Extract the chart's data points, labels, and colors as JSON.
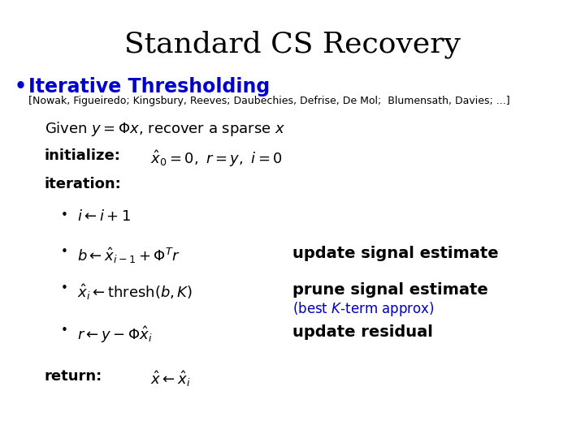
{
  "title": "Standard CS Recovery",
  "title_fontsize": 26,
  "background_color": "#ffffff",
  "bullet_color": "#0000cc",
  "bullet_text": "Iterative Thresholding",
  "bullet_fontsize": 17,
  "ref_text": "[Nowak, Figueiredo; Kingsbury, Reeves; Daubechies, Defrise, De Mol;  Blumensath, Davies; ...]",
  "ref_fontsize": 9,
  "given_text": "Given $y = \\Phi x$, recover a sparse $x$",
  "given_fontsize": 13,
  "init_label": "initialize:",
  "init_math": "$\\hat{x}_0 = 0,\\ r = y,\\ i = 0$",
  "init_fontsize": 13,
  "iter_label": "iteration:",
  "iter_fontsize": 13,
  "sub_bullets": [
    {
      "math": "$i \\leftarrow i + 1$",
      "annotation": "",
      "annotation_color": "#000000",
      "annotation_bold": false
    },
    {
      "math": "$b \\leftarrow \\hat{x}_{i-1} + \\Phi^T r$",
      "annotation": "update signal estimate",
      "annotation_color": "#000000",
      "annotation_bold": true
    },
    {
      "math": "$\\hat{x}_i \\leftarrow \\mathrm{thresh}(b, K)$",
      "annotation": "prune signal estimate",
      "annotation_color": "#000000",
      "annotation_bold": true,
      "sub_annotation": "(best $K$-term approx)",
      "sub_annotation_color": "#0000cc"
    },
    {
      "math": "$r \\leftarrow y - \\Phi\\hat{x}_i$",
      "annotation": "update residual",
      "annotation_color": "#000000",
      "annotation_bold": true
    }
  ],
  "return_label": "return:",
  "return_math": "$\\hat{x} \\leftarrow \\hat{x}_i$",
  "return_fontsize": 13,
  "math_fontsize": 13,
  "annot_fontsize": 14,
  "sub_annot_fontsize": 12
}
